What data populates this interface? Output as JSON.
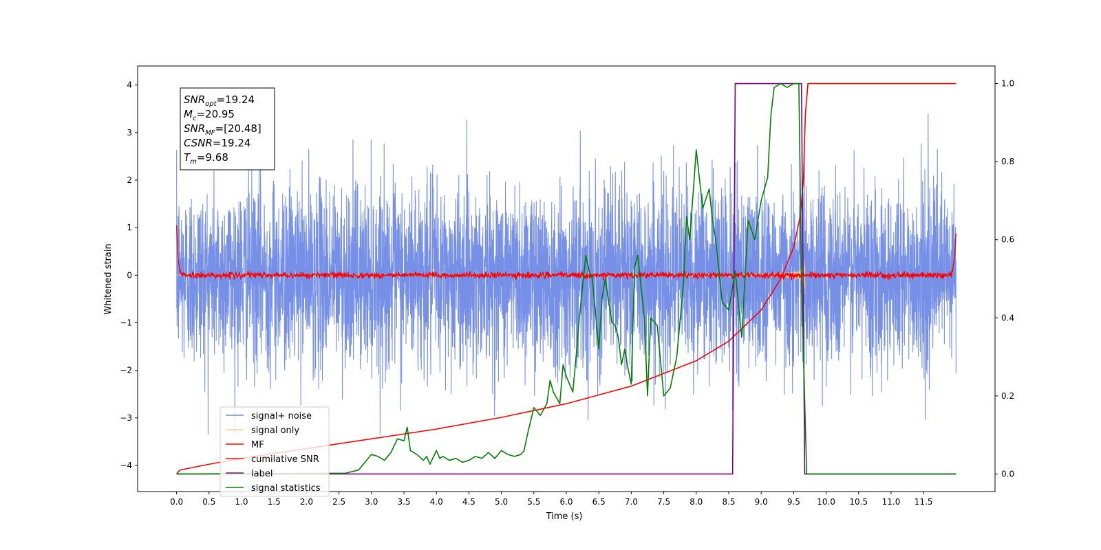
{
  "chart_data": {
    "type": "line",
    "title": "",
    "xlabel": "Time (s)",
    "ylabel_left": "Whitened strain",
    "ylabel_right": "",
    "xlim": [
      -0.6,
      12.6
    ],
    "ylim_left": [
      -4.55,
      4.4
    ],
    "ylim_right": [
      -0.045,
      1.045
    ],
    "x_ticks": [
      0.0,
      0.5,
      1.0,
      1.5,
      2.0,
      2.5,
      3.0,
      3.5,
      4.0,
      4.5,
      5.0,
      5.5,
      6.0,
      6.5,
      7.0,
      7.5,
      8.0,
      8.5,
      9.0,
      9.5,
      10.0,
      10.5,
      11.0,
      11.5
    ],
    "x_tick_labels": [
      "0.0",
      "0.5",
      "1.0",
      "1.5",
      "2.0",
      "2.5",
      "3.0",
      "3.5",
      "4.0",
      "4.5",
      "5.0",
      "5.5",
      "6.0",
      "6.5",
      "7.0",
      "7.5",
      "8.0",
      "8.5",
      "9.0",
      "9.5",
      "10.0",
      "10.5",
      "11.0",
      "11.5"
    ],
    "y_left_ticks": [
      -4,
      -3,
      -2,
      -1,
      0,
      1,
      2,
      3,
      4
    ],
    "y_left_tick_labels": [
      "−4",
      "−3",
      "−2",
      "−1",
      "0",
      "1",
      "2",
      "3",
      "4"
    ],
    "y_right_ticks": [
      0.0,
      0.2,
      0.4,
      0.6,
      0.8,
      1.0
    ],
    "y_right_tick_labels": [
      "0.0",
      "0.2",
      "0.4",
      "0.6",
      "0.8",
      "1.0"
    ],
    "grid": false,
    "legend_position": "bottom-left",
    "info_box": [
      {
        "sym": "SNR",
        "sub": "opt",
        "value": "=19.24"
      },
      {
        "sym": "M",
        "sub": "c",
        "value": "=20.95"
      },
      {
        "sym": "SNR",
        "sub": "MF",
        "value": "=[20.48]"
      },
      {
        "sym": "CSNR",
        "sub": "",
        "value": "=19.24"
      },
      {
        "sym": "T",
        "sub": "m",
        "value": "=9.68"
      }
    ],
    "series": [
      {
        "name": "signal+ noise",
        "color": "#6f8ae6",
        "axis": "left",
        "x_range": [
          0.0,
          12.0
        ],
        "amplitude_sigma": 1.0,
        "peak_range": [
          -3.35,
          3.4
        ]
      },
      {
        "name": "signal only",
        "color": "#f3c67e",
        "axis": "left",
        "x_range": [
          0.0,
          9.68
        ],
        "chirp_end": 9.68,
        "peak_amplitude": 1.7
      },
      {
        "name": "MF",
        "color": "#ff0000",
        "axis": "left",
        "x": [
          0.0,
          0.02,
          0.05,
          0.1,
          11.9,
          11.95,
          11.98,
          12.0
        ],
        "y": [
          1.0,
          0.4,
          0.1,
          0.0,
          0.0,
          0.1,
          0.4,
          0.95
        ],
        "noise_amplitude": 0.05
      },
      {
        "name": "cumilative SNR",
        "color": "#ff0000",
        "axis": "right",
        "x": [
          0.0,
          0.05,
          0.5,
          1.0,
          2.0,
          3.0,
          4.0,
          5.0,
          6.0,
          7.0,
          8.0,
          8.5,
          9.0,
          9.3,
          9.5,
          9.6,
          9.65,
          9.68,
          9.72,
          12.0
        ],
        "y": [
          0.0,
          0.01,
          0.025,
          0.04,
          0.065,
          0.09,
          0.115,
          0.145,
          0.18,
          0.225,
          0.29,
          0.34,
          0.42,
          0.5,
          0.58,
          0.66,
          0.75,
          0.92,
          1.0,
          1.0
        ]
      },
      {
        "name": "label",
        "color": "#800080",
        "axis": "right",
        "x": [
          0.0,
          8.56,
          8.6,
          9.62,
          9.67,
          12.0
        ],
        "y": [
          0.0,
          0.0,
          1.0,
          1.0,
          0.0,
          0.0
        ]
      },
      {
        "name": "signal statistics",
        "color": "#008000",
        "axis": "right",
        "x": [
          0.0,
          2.6,
          2.8,
          2.9,
          3.0,
          3.1,
          3.2,
          3.3,
          3.4,
          3.5,
          3.55,
          3.6,
          3.7,
          3.8,
          3.85,
          3.9,
          4.0,
          4.05,
          4.1,
          4.2,
          4.3,
          4.4,
          4.5,
          4.6,
          4.7,
          4.8,
          4.9,
          5.0,
          5.1,
          5.2,
          5.3,
          5.35,
          5.4,
          5.5,
          5.6,
          5.7,
          5.75,
          5.8,
          5.9,
          5.95,
          6.0,
          6.1,
          6.15,
          6.2,
          6.3,
          6.35,
          6.4,
          6.5,
          6.55,
          6.6,
          6.7,
          6.75,
          6.8,
          6.85,
          6.9,
          6.95,
          7.0,
          7.05,
          7.1,
          7.2,
          7.25,
          7.3,
          7.4,
          7.5,
          7.6,
          7.7,
          7.8,
          7.85,
          7.9,
          8.0,
          8.1,
          8.2,
          8.25,
          8.3,
          8.4,
          8.5,
          8.6,
          8.7,
          8.8,
          8.9,
          9.0,
          9.1,
          9.15,
          9.2,
          9.3,
          9.4,
          9.5,
          9.58,
          9.62,
          9.7,
          9.75,
          12.0
        ],
        "y": [
          0.0,
          0.002,
          0.01,
          0.03,
          0.05,
          0.045,
          0.035,
          0.055,
          0.09,
          0.085,
          0.12,
          0.06,
          0.05,
          0.035,
          0.045,
          0.025,
          0.06,
          0.04,
          0.045,
          0.035,
          0.04,
          0.03,
          0.035,
          0.045,
          0.04,
          0.055,
          0.04,
          0.06,
          0.05,
          0.045,
          0.05,
          0.06,
          0.1,
          0.17,
          0.15,
          0.18,
          0.24,
          0.21,
          0.18,
          0.28,
          0.25,
          0.21,
          0.3,
          0.4,
          0.56,
          0.52,
          0.5,
          0.32,
          0.45,
          0.5,
          0.39,
          0.38,
          0.35,
          0.28,
          0.32,
          0.27,
          0.23,
          0.53,
          0.56,
          0.4,
          0.2,
          0.4,
          0.38,
          0.2,
          0.22,
          0.3,
          0.48,
          0.66,
          0.6,
          0.83,
          0.68,
          0.73,
          0.65,
          0.6,
          0.44,
          0.42,
          0.52,
          0.35,
          0.65,
          0.6,
          0.7,
          0.76,
          0.92,
          0.99,
          1.0,
          0.99,
          1.0,
          1.0,
          0.5,
          0.0,
          0.0,
          0.0
        ]
      }
    ]
  }
}
